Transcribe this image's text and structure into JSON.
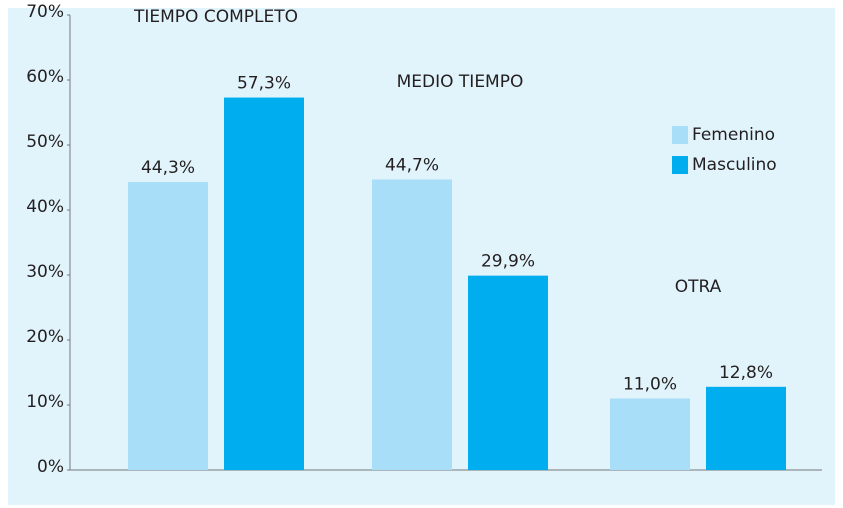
{
  "chart_data": {
    "type": "bar",
    "categories": [
      "TIEMPO COMPLETO",
      "MEDIO TIEMPO",
      "OTRA"
    ],
    "series": [
      {
        "name": "Femenino",
        "color": "#a8def8",
        "values": [
          44.3,
          44.7,
          11.0
        ],
        "value_labels": [
          "44,3%",
          "44,7%",
          "11,0%"
        ]
      },
      {
        "name": "Masculino",
        "color": "#00adee",
        "values": [
          57.3,
          29.9,
          12.8
        ],
        "value_labels": [
          "57,3%",
          "29,9%",
          "12,8%"
        ]
      }
    ],
    "ylim": [
      0,
      70
    ],
    "yticks": [
      {
        "value": 0,
        "label": "0%"
      },
      {
        "value": 10,
        "label": "10%"
      },
      {
        "value": 20,
        "label": "20%"
      },
      {
        "value": 30,
        "label": "30%"
      },
      {
        "value": 40,
        "label": "40%"
      },
      {
        "value": 50,
        "label": "50%"
      },
      {
        "value": 60,
        "label": "60%"
      },
      {
        "value": 70,
        "label": "70%"
      }
    ],
    "legend": "right"
  }
}
